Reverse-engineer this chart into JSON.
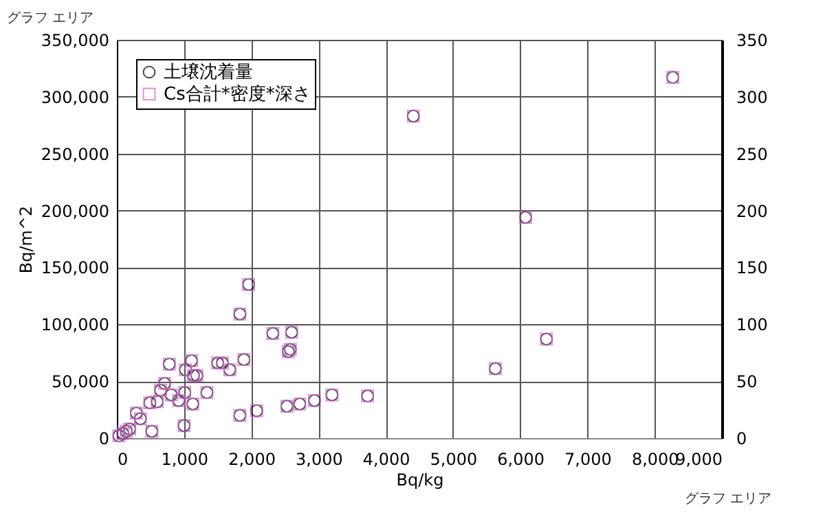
{
  "chart_data": {
    "type": "scatter",
    "xlabel": "Bq/kg",
    "ylabel": "Bq/m^2",
    "x": [
      1960,
      1830,
      2320,
      2600,
      2550,
      2580,
      1890,
      780,
      1110,
      1500,
      1570,
      1680,
      1020,
      1140,
      1190,
      710,
      650,
      810,
      1010,
      920,
      1130,
      1340,
      600,
      490,
      290,
      350,
      520,
      1000,
      190,
      90,
      30,
      140,
      1830,
      2080,
      2530,
      2720,
      2940,
      3200,
      3730,
      4410,
      8270,
      6080,
      6390,
      5630
    ],
    "series": [
      {
        "name": "土壌沈着量",
        "color": "#000000",
        "marker": "circle",
        "values": [
          135000,
          109000,
          92000,
          93000,
          76000,
          78000,
          69000,
          65000,
          68000,
          66000,
          66000,
          60000,
          60000,
          55000,
          55000,
          48000,
          42000,
          38000,
          40000,
          33000,
          30000,
          40000,
          32000,
          31000,
          22000,
          17000,
          6000,
          11000,
          8000,
          4000,
          2000,
          6000,
          20000,
          24000,
          28000,
          30000,
          33000,
          38000,
          37000,
          283000,
          317000,
          194000,
          87000,
          61000
        ]
      },
      {
        "name": "Cs合計*密度*深さ",
        "color": "#cc66cc",
        "marker": "square",
        "values": [
          135000,
          109000,
          92000,
          93000,
          76000,
          78000,
          69000,
          65000,
          68000,
          66000,
          66000,
          60000,
          60000,
          55000,
          55000,
          48000,
          42000,
          38000,
          40000,
          33000,
          30000,
          40000,
          32000,
          31000,
          22000,
          17000,
          6000,
          11000,
          8000,
          4000,
          2000,
          6000,
          20000,
          24000,
          28000,
          30000,
          33000,
          38000,
          37000,
          283000,
          317000,
          194000,
          87000,
          61000
        ]
      }
    ],
    "xlim": [
      0,
      9000
    ],
    "xticks": [
      0,
      {
        "value": 1000,
        "label": "1,000"
      },
      {
        "value": 2000,
        "label": "2,000"
      },
      {
        "value": 3000,
        "label": "3,000"
      },
      {
        "value": 4000,
        "label": "4,000"
      },
      {
        "value": 5000,
        "label": "5,000"
      },
      {
        "value": 6000,
        "label": "6,000"
      },
      {
        "value": 7000,
        "label": "7,000"
      },
      {
        "value": 8000,
        "label": "8,000"
      },
      {
        "value": 9000,
        "label": "9,000"
      }
    ],
    "ylim": [
      0,
      350000
    ],
    "yticks": [
      0,
      {
        "value": 50000,
        "label": "50,000"
      },
      {
        "value": 100000,
        "label": "100,000"
      },
      {
        "value": 150000,
        "label": "150,000"
      },
      {
        "value": 200000,
        "label": "200,000"
      },
      {
        "value": 250000,
        "label": "250,000"
      },
      {
        "value": 300000,
        "label": "300,000"
      },
      {
        "value": 350000,
        "label": "350,000"
      }
    ],
    "y2lim": [
      0,
      350
    ],
    "y2ticks": [
      0,
      50,
      100,
      150,
      200,
      250,
      300,
      350
    ],
    "grid": true,
    "legend": "top left",
    "annotations": [
      "グラフ エリア",
      "グラフ エリア"
    ]
  }
}
